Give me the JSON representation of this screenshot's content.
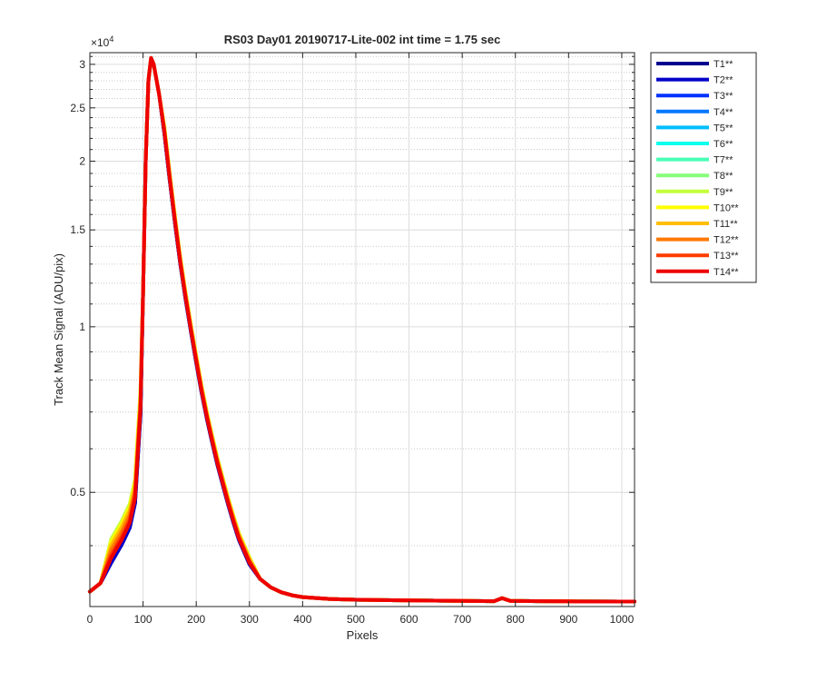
{
  "chart_data": {
    "type": "line",
    "title": "RS03 Day01 20190717-Lite-002 int time = 1.75 sec",
    "xlabel": "Pixels",
    "ylabel": "Track Mean Signal (ADU/pix)",
    "y_exponent_label": "×10",
    "y_exponent_power": "4",
    "y_scale": "log",
    "xlim": [
      0,
      1024
    ],
    "ylim": [
      3100,
      31500
    ],
    "x_ticks": [
      0,
      100,
      200,
      300,
      400,
      500,
      600,
      700,
      800,
      900,
      1000
    ],
    "x_tick_labels": [
      "0",
      "100",
      "200",
      "300",
      "400",
      "500",
      "600",
      "700",
      "800",
      "900",
      "1000"
    ],
    "y_ticks": [
      5000,
      10000,
      15000,
      20000,
      25000,
      30000
    ],
    "y_tick_labels": [
      "0.5",
      "1",
      "1.5",
      "2",
      "2.5",
      "3"
    ],
    "y_minor_ticks": [
      4000,
      6000,
      7000,
      8000,
      9000,
      11000,
      12000,
      13000,
      14000,
      16000,
      17000,
      18000,
      19000,
      21000,
      22000,
      23000,
      24000,
      26000,
      27000,
      28000,
      29000,
      31000
    ],
    "grid": true,
    "minor_grid": true,
    "legend_position": "outside-right",
    "x": [
      0,
      20,
      40,
      60,
      75,
      85,
      95,
      100,
      105,
      110,
      115,
      120,
      130,
      140,
      150,
      160,
      170,
      180,
      190,
      200,
      210,
      220,
      230,
      240,
      250,
      260,
      270,
      280,
      300,
      320,
      340,
      360,
      380,
      400,
      450,
      500,
      600,
      700,
      760,
      775,
      790,
      850,
      900,
      1000,
      1024
    ],
    "series": [
      {
        "name": "T1**",
        "color": "#00008f",
        "offset": 0.0,
        "values": [
          3300,
          3420,
          3720,
          4020,
          4310,
          4780,
          6900,
          11500,
          20000,
          28000,
          30800,
          30000,
          26500,
          22500,
          18500,
          15400,
          13000,
          11200,
          9800,
          8600,
          7600,
          6800,
          6150,
          5600,
          5150,
          4750,
          4400,
          4100,
          3700,
          3480,
          3360,
          3290,
          3250,
          3225,
          3200,
          3190,
          3180,
          3175,
          3170,
          3210,
          3175,
          3170,
          3168,
          3165,
          3165
        ]
      },
      {
        "name": "T2**",
        "color": "#0000c8",
        "offset": 0.0,
        "values": [
          3300,
          3420,
          3720,
          4020,
          4310,
          4780,
          6900,
          11500,
          20000,
          28000,
          30800,
          30000,
          26500,
          22500,
          18500,
          15400,
          13000,
          11200,
          9800,
          8600,
          7600,
          6800,
          6150,
          5600,
          5150,
          4750,
          4400,
          4100,
          3700,
          3480,
          3360,
          3290,
          3250,
          3225,
          3200,
          3190,
          3180,
          3175,
          3170,
          3210,
          3175,
          3170,
          3168,
          3165,
          3165
        ]
      },
      {
        "name": "T3**",
        "color": "#0032ff",
        "offset": 0.03,
        "values": [
          3300,
          3420,
          3720,
          4020,
          4310,
          4780,
          6900,
          11500,
          20000,
          28000,
          30800,
          30000,
          26500,
          22500,
          18500,
          15400,
          13000,
          11200,
          9800,
          8600,
          7600,
          6800,
          6150,
          5600,
          5150,
          4750,
          4400,
          4100,
          3700,
          3480,
          3360,
          3290,
          3250,
          3225,
          3200,
          3190,
          3180,
          3175,
          3170,
          3210,
          3175,
          3170,
          3168,
          3165,
          3165
        ]
      },
      {
        "name": "T4**",
        "color": "#0078ff",
        "offset": 0.05,
        "values": [
          3300,
          3420,
          3720,
          4020,
          4310,
          4780,
          6900,
          11500,
          20000,
          28000,
          30800,
          30000,
          26500,
          22500,
          18500,
          15400,
          13000,
          11200,
          9800,
          8600,
          7600,
          6800,
          6150,
          5600,
          5150,
          4750,
          4400,
          4100,
          3700,
          3480,
          3360,
          3290,
          3250,
          3225,
          3200,
          3190,
          3180,
          3175,
          3170,
          3210,
          3175,
          3170,
          3168,
          3165,
          3165
        ]
      },
      {
        "name": "T5**",
        "color": "#00beff",
        "offset": 0.07,
        "values": [
          3300,
          3420,
          3720,
          4020,
          4310,
          4780,
          6900,
          11500,
          20000,
          28000,
          30800,
          30000,
          26500,
          22500,
          18500,
          15400,
          13000,
          11200,
          9800,
          8600,
          7600,
          6800,
          6150,
          5600,
          5150,
          4750,
          4400,
          4100,
          3700,
          3480,
          3360,
          3290,
          3250,
          3225,
          3200,
          3190,
          3180,
          3175,
          3170,
          3210,
          3175,
          3170,
          3168,
          3165,
          3165
        ]
      },
      {
        "name": "T6**",
        "color": "#0affee",
        "offset": 0.06,
        "values": [
          3300,
          3420,
          3720,
          4020,
          4310,
          4780,
          6900,
          11500,
          20000,
          28000,
          30800,
          30000,
          26500,
          22500,
          18500,
          15400,
          13000,
          11200,
          9800,
          8600,
          7600,
          6800,
          6150,
          5600,
          5150,
          4750,
          4400,
          4100,
          3700,
          3480,
          3360,
          3290,
          3250,
          3225,
          3200,
          3190,
          3180,
          3175,
          3170,
          3210,
          3175,
          3170,
          3168,
          3165,
          3165
        ]
      },
      {
        "name": "T7**",
        "color": "#48ffb6",
        "offset": 0.09,
        "values": [
          3300,
          3420,
          3720,
          4020,
          4310,
          4780,
          6900,
          11500,
          20000,
          28000,
          30800,
          30000,
          26500,
          22500,
          18500,
          15400,
          13000,
          11200,
          9800,
          8600,
          7600,
          6800,
          6150,
          5600,
          5150,
          4750,
          4400,
          4100,
          3700,
          3480,
          3360,
          3290,
          3250,
          3225,
          3200,
          3190,
          3180,
          3175,
          3170,
          3210,
          3175,
          3170,
          3168,
          3165,
          3165
        ]
      },
      {
        "name": "T8**",
        "color": "#86ff78",
        "offset": 0.14,
        "values": [
          3300,
          3420,
          3720,
          4020,
          4310,
          4780,
          6900,
          11500,
          20000,
          28000,
          30800,
          30000,
          26500,
          22500,
          18500,
          15400,
          13000,
          11200,
          9800,
          8600,
          7600,
          6800,
          6150,
          5600,
          5150,
          4750,
          4400,
          4100,
          3700,
          3480,
          3360,
          3290,
          3250,
          3225,
          3200,
          3190,
          3180,
          3175,
          3170,
          3210,
          3175,
          3170,
          3168,
          3165,
          3165
        ]
      },
      {
        "name": "T9**",
        "color": "#c4ff3a",
        "offset": 0.15,
        "values": [
          3300,
          3420,
          3720,
          4020,
          4310,
          4780,
          6900,
          11500,
          20000,
          28000,
          30800,
          30000,
          26500,
          22500,
          18500,
          15400,
          13000,
          11200,
          9800,
          8600,
          7600,
          6800,
          6150,
          5600,
          5150,
          4750,
          4400,
          4100,
          3700,
          3480,
          3360,
          3290,
          3250,
          3225,
          3200,
          3190,
          3180,
          3175,
          3170,
          3210,
          3175,
          3170,
          3168,
          3165,
          3165
        ]
      },
      {
        "name": "T10**",
        "color": "#ffff00",
        "offset": 0.13,
        "values": [
          3300,
          3420,
          3720,
          4020,
          4310,
          4780,
          6900,
          11500,
          20000,
          28000,
          30800,
          30000,
          26500,
          22500,
          18500,
          15400,
          13000,
          11200,
          9800,
          8600,
          7600,
          6800,
          6150,
          5600,
          5150,
          4750,
          4400,
          4100,
          3700,
          3480,
          3360,
          3290,
          3250,
          3225,
          3200,
          3190,
          3180,
          3175,
          3170,
          3210,
          3175,
          3170,
          3168,
          3165,
          3165
        ]
      },
      {
        "name": "T11**",
        "color": "#ffbe00",
        "offset": 0.11,
        "values": [
          3300,
          3420,
          3720,
          4020,
          4310,
          4780,
          6900,
          11500,
          20000,
          28000,
          30800,
          30000,
          26500,
          22500,
          18500,
          15400,
          13000,
          11200,
          9800,
          8600,
          7600,
          6800,
          6150,
          5600,
          5150,
          4750,
          4400,
          4100,
          3700,
          3480,
          3360,
          3290,
          3250,
          3225,
          3200,
          3190,
          3180,
          3175,
          3170,
          3210,
          3175,
          3170,
          3168,
          3165,
          3165
        ]
      },
      {
        "name": "T12**",
        "color": "#ff7800",
        "offset": 0.08,
        "values": [
          3300,
          3420,
          3720,
          4020,
          4310,
          4780,
          6900,
          11500,
          20000,
          28000,
          30800,
          30000,
          26500,
          22500,
          18500,
          15400,
          13000,
          11200,
          9800,
          8600,
          7600,
          6800,
          6150,
          5600,
          5150,
          4750,
          4400,
          4100,
          3700,
          3480,
          3360,
          3290,
          3250,
          3225,
          3200,
          3190,
          3180,
          3175,
          3170,
          3210,
          3175,
          3170,
          3168,
          3165,
          3165
        ]
      },
      {
        "name": "T13**",
        "color": "#ff3c00",
        "offset": 0.05,
        "values": [
          3300,
          3420,
          3720,
          4020,
          4310,
          4780,
          6900,
          11500,
          20000,
          28000,
          30800,
          30000,
          26500,
          22500,
          18500,
          15400,
          13000,
          11200,
          9800,
          8600,
          7600,
          6800,
          6150,
          5600,
          5150,
          4750,
          4400,
          4100,
          3700,
          3480,
          3360,
          3290,
          3250,
          3225,
          3200,
          3190,
          3180,
          3175,
          3170,
          3210,
          3175,
          3170,
          3168,
          3165,
          3165
        ]
      },
      {
        "name": "T14**",
        "color": "#ee0000",
        "offset": 0.03,
        "values": [
          3300,
          3420,
          3720,
          4020,
          4310,
          4780,
          6900,
          11500,
          20000,
          28000,
          30800,
          30000,
          26500,
          22500,
          18500,
          15400,
          13000,
          11200,
          9800,
          8600,
          7600,
          6800,
          6150,
          5600,
          5150,
          4750,
          4400,
          4100,
          3700,
          3480,
          3360,
          3290,
          3250,
          3225,
          3200,
          3190,
          3180,
          3175,
          3170,
          3210,
          3175,
          3170,
          3168,
          3165,
          3165
        ]
      }
    ]
  }
}
